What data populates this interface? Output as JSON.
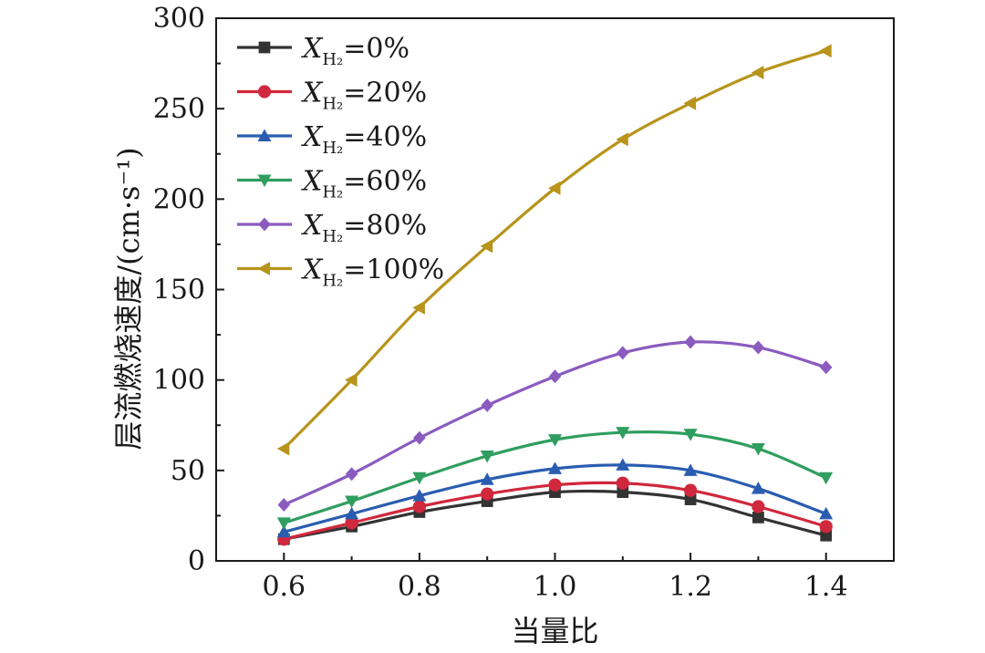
{
  "chart_data": {
    "type": "line",
    "title": "",
    "xlabel": "当量比",
    "ylabel": "层流燃烧速度/(cm·s⁻¹)",
    "x": [
      0.6,
      0.7,
      0.8,
      0.9,
      1.0,
      1.1,
      1.2,
      1.3,
      1.4
    ],
    "xlim": [
      0.5,
      1.5
    ],
    "ylim": [
      0,
      300
    ],
    "xticks": [
      "0.6",
      "0.8",
      "1.0",
      "1.2",
      "1.4"
    ],
    "yticks": [
      "0",
      "50",
      "100",
      "150",
      "200",
      "250",
      "300"
    ],
    "grid": false,
    "legend_position": "top-left",
    "legend_var": "X",
    "legend_sub": "H₂",
    "series": [
      {
        "name": "=0%",
        "color": "#333333",
        "marker": "square",
        "values": [
          12,
          19,
          27,
          33,
          38,
          38,
          34,
          24,
          14
        ]
      },
      {
        "name": "=20%",
        "color": "#d0283c",
        "marker": "circle",
        "values": [
          12,
          21,
          30,
          37,
          42,
          43,
          39,
          30,
          19
        ]
      },
      {
        "name": "=40%",
        "color": "#2a5db0",
        "marker": "triangle-up",
        "values": [
          16,
          26,
          36,
          45,
          51,
          53,
          50,
          40,
          26
        ]
      },
      {
        "name": "=60%",
        "color": "#2f9e5f",
        "marker": "triangle-down",
        "values": [
          21,
          33,
          46,
          58,
          67,
          71,
          70,
          62,
          46
        ]
      },
      {
        "name": "=80%",
        "color": "#8b5bbf",
        "marker": "diamond",
        "values": [
          31,
          48,
          68,
          86,
          102,
          115,
          121,
          118,
          107
        ]
      },
      {
        "name": "=100%",
        "color": "#b8941c",
        "marker": "triangle-left",
        "values": [
          62,
          100,
          140,
          174,
          206,
          233,
          253,
          270,
          282
        ]
      }
    ]
  }
}
